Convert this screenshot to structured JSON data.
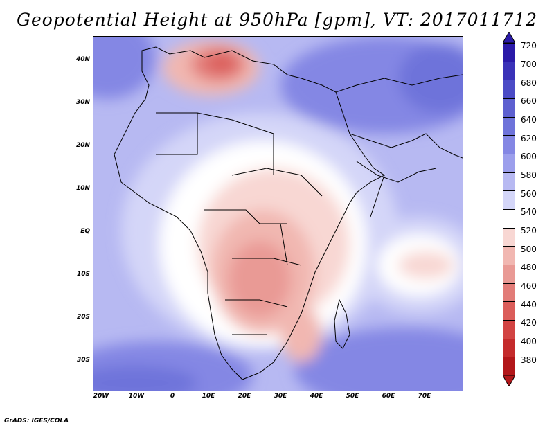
{
  "title": "Geopotential Height at 950hPa [gpm], VT: 2017011712",
  "credit": "GrADS: IGES/COLA",
  "axes": {
    "lat_labels": [
      "40N",
      "30N",
      "20N",
      "10N",
      "EQ",
      "10S",
      "20S",
      "30S"
    ],
    "lon_labels": [
      "20W",
      "10W",
      "0",
      "10E",
      "20E",
      "30E",
      "40E",
      "50E",
      "60E",
      "70E"
    ]
  },
  "colorbar": {
    "levels": [
      "720",
      "700",
      "680",
      "660",
      "640",
      "620",
      "600",
      "580",
      "560",
      "540",
      "520",
      "500",
      "480",
      "460",
      "440",
      "420",
      "400",
      "380"
    ],
    "colors": [
      "#2a1aa8",
      "#3a32b8",
      "#4b4bc6",
      "#5d60d0",
      "#6e73da",
      "#8487e4",
      "#9c9fec",
      "#b7b9f2",
      "#d4d6f8",
      "#ffffff",
      "#f8d7d3",
      "#f1b7b1",
      "#e99a95",
      "#e27c78",
      "#db5d5a",
      "#d24443",
      "#c42b2c",
      "#b2171a"
    ]
  },
  "chart_data": {
    "type": "heatmap",
    "title": "Geopotential Height at 950hPa [gpm], VT: 2017011712",
    "variable": "Geopotential Height",
    "level_hPa": 950,
    "units": "gpm",
    "valid_time": "2017011712",
    "lon_range": [
      -22,
      80
    ],
    "lat_range": [
      -37,
      45
    ],
    "contour_levels": [
      380,
      400,
      420,
      440,
      460,
      480,
      500,
      520,
      540,
      560,
      580,
      600,
      620,
      640,
      660,
      680,
      700,
      720
    ],
    "features": [
      {
        "region": "Mediterranean (Tunisia/Sicily)",
        "value_range": [
          440,
          480
        ],
        "type": "low"
      },
      {
        "region": "Central/Southern Africa",
        "value_range": [
          480,
          520
        ],
        "type": "low"
      },
      {
        "region": "Middle East / Iran",
        "value_range": [
          600,
          640
        ],
        "type": "high"
      },
      {
        "region": "Southern Ocean south of Africa",
        "value_range": [
          620,
          660
        ],
        "type": "high"
      },
      {
        "region": "Tropical Atlantic west of Africa",
        "value_range": [
          560,
          620
        ],
        "type": "high"
      }
    ]
  }
}
